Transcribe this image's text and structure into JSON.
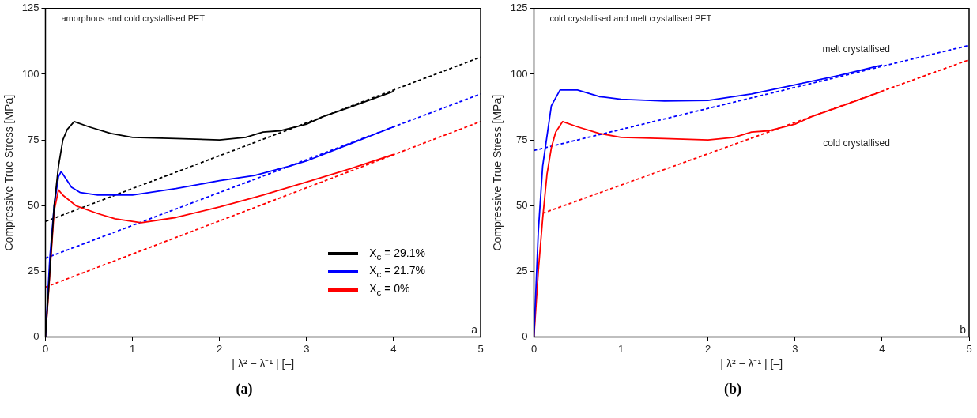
{
  "chart_data": [
    {
      "type": "line",
      "xlabel": "| λ² − λ⁻¹ | [–]",
      "ylabel": "Compressive True Stress [MPa]",
      "xlim": [
        0,
        5
      ],
      "xticks": [
        0,
        1,
        2,
        3,
        4,
        5
      ],
      "ylim": [
        0,
        125
      ],
      "yticks": [
        0,
        25,
        50,
        75,
        100,
        125
      ],
      "grid": false,
      "legend": "bottom right",
      "marker": "none",
      "annotations": [
        "amorphous and cold crystallised PET",
        "a",
        "(a)"
      ],
      "series": [
        {
          "name": "X$_{c}$ = 29.1%",
          "color": "#000000",
          "x": [
            0,
            0.05,
            0.1,
            0.15,
            0.2,
            0.25,
            0.33,
            0.5,
            0.75,
            1,
            1.5,
            2,
            2.3,
            2.5,
            2.7,
            3,
            3.2,
            3.5,
            4
          ],
          "values": [
            0,
            25,
            50,
            65,
            75,
            79,
            82,
            80,
            77.5,
            76,
            75.5,
            75,
            76,
            78,
            78.5,
            81,
            84,
            87.5,
            93.5
          ]
        },
        {
          "name": "X$_{c}$ = 21.7%",
          "color": "#0000ff",
          "x": [
            0,
            0.05,
            0.1,
            0.15,
            0.18,
            0.3,
            0.4,
            0.6,
            1,
            1.5,
            2,
            2.4,
            2.8,
            3,
            3.5,
            4
          ],
          "values": [
            0,
            30,
            50,
            61,
            63,
            57,
            55,
            54,
            54,
            56.5,
            59.5,
            61.5,
            65,
            67,
            73.5,
            80
          ]
        },
        {
          "name": "X$_{c}$ = 0%",
          "color": "#ff0000",
          "x": [
            0,
            0.1,
            0.15,
            0.2,
            0.35,
            0.6,
            0.8,
            1.1,
            1.5,
            2,
            2.5,
            3,
            3.5,
            4
          ],
          "values": [
            0,
            48,
            56,
            54,
            50,
            47,
            45,
            43.5,
            45.5,
            49.5,
            54,
            59,
            64,
            69.5
          ]
        },
        {
          "color": "#000000",
          "line_style": "dashed",
          "x": [
            0,
            5
          ],
          "values": [
            44,
            106.5
          ]
        },
        {
          "color": "#0000ff",
          "line_style": "dashed",
          "x": [
            0,
            5
          ],
          "values": [
            30,
            92.5
          ]
        },
        {
          "color": "#ff0000",
          "line_style": "dashed",
          "x": [
            0,
            5
          ],
          "values": [
            19,
            82
          ]
        }
      ]
    },
    {
      "type": "line",
      "xlabel": "| λ² − λ⁻¹ | [–]",
      "ylabel": "Compressive True Stress [MPa]",
      "xlim": [
        0,
        5
      ],
      "xticks": [
        0,
        1,
        2,
        3,
        4,
        5
      ],
      "ylim": [
        0,
        125
      ],
      "yticks": [
        0,
        25,
        50,
        75,
        100,
        125
      ],
      "grid": false,
      "legend": false,
      "marker": "none",
      "annotations": [
        "cold crystallised and melt crystallised PET",
        "b",
        "(b)"
      ],
      "series": [
        {
          "name": "melt crystallised",
          "color": "#0000ff",
          "x": [
            0,
            0.05,
            0.1,
            0.2,
            0.3,
            0.5,
            0.75,
            1,
            1.5,
            2,
            2.5,
            3,
            3.5,
            4
          ],
          "values": [
            0,
            40,
            65,
            88,
            94,
            94,
            91.5,
            90.5,
            89.8,
            90,
            92.5,
            96,
            99.5,
            103.5
          ]
        },
        {
          "name": "cold crystallised",
          "color": "#ff0000",
          "x": [
            0,
            0.05,
            0.1,
            0.15,
            0.2,
            0.25,
            0.33,
            0.5,
            0.75,
            1,
            1.5,
            2,
            2.3,
            2.5,
            2.7,
            3,
            3.2,
            3.5,
            4
          ],
          "values": [
            0,
            25,
            45,
            62,
            72,
            78,
            82,
            80,
            77.5,
            76,
            75.5,
            75,
            76,
            78,
            78.5,
            81,
            84,
            87.5,
            93.5
          ]
        },
        {
          "color": "#0000ff",
          "line_style": "dashed",
          "x": [
            0,
            5
          ],
          "values": [
            71,
            111
          ]
        },
        {
          "color": "#ff0000",
          "line_style": "dashed",
          "x": [
            0.1,
            5
          ],
          "values": [
            47.1,
            105.5
          ]
        }
      ]
    }
  ]
}
